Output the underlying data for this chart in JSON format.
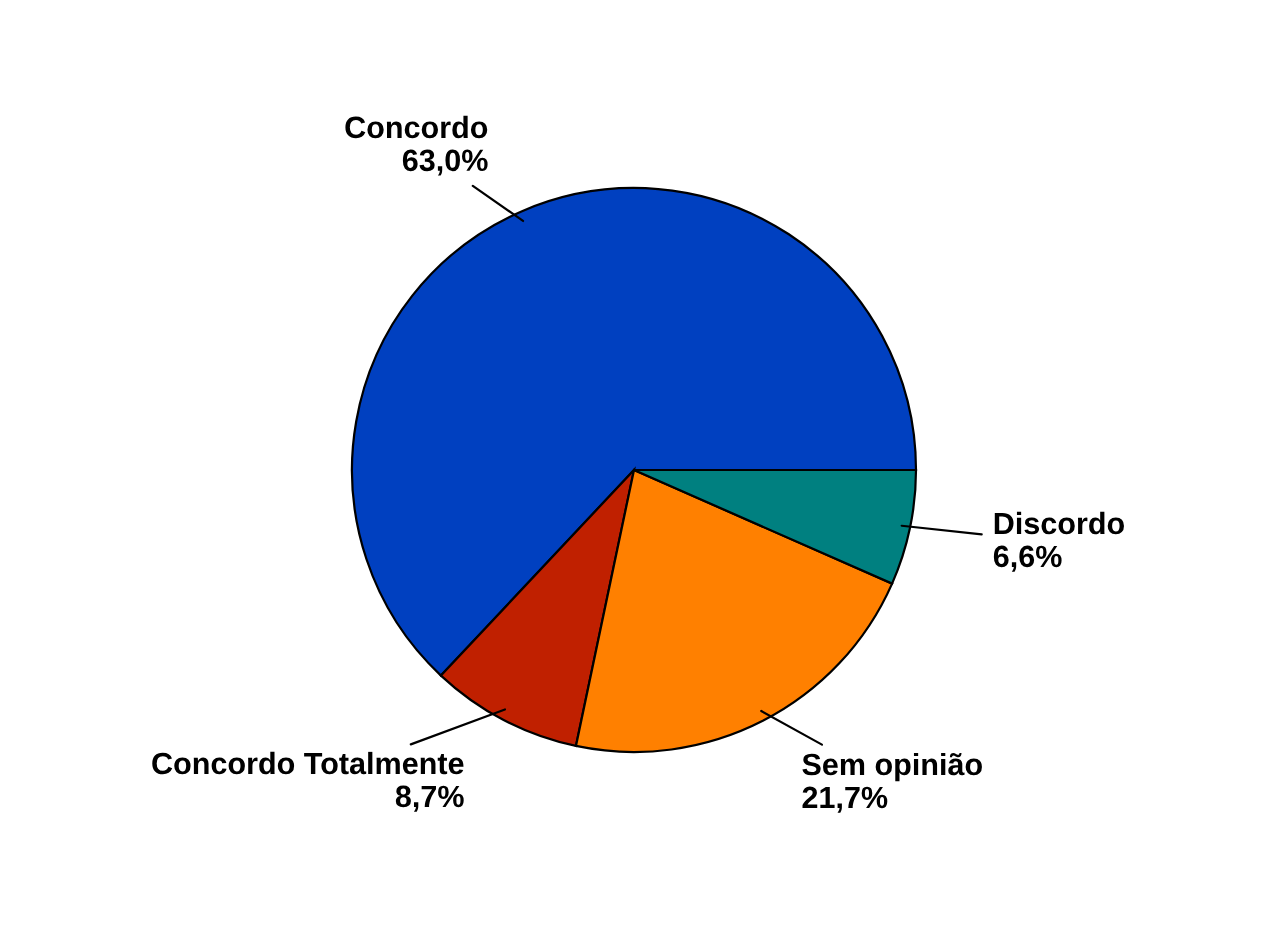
{
  "chart_data": {
    "type": "pie",
    "categories": [
      "Concordo",
      "Concordo Totalmente",
      "Sem opinião",
      "Discordo"
    ],
    "values": [
      63.0,
      8.7,
      21.7,
      6.6
    ],
    "value_labels": [
      "63,0%",
      "8,7%",
      "21,7%",
      "6,6%"
    ],
    "colors": [
      "#0040c0",
      "#c02000",
      "#ff8000",
      "#008080"
    ],
    "legend": false
  }
}
